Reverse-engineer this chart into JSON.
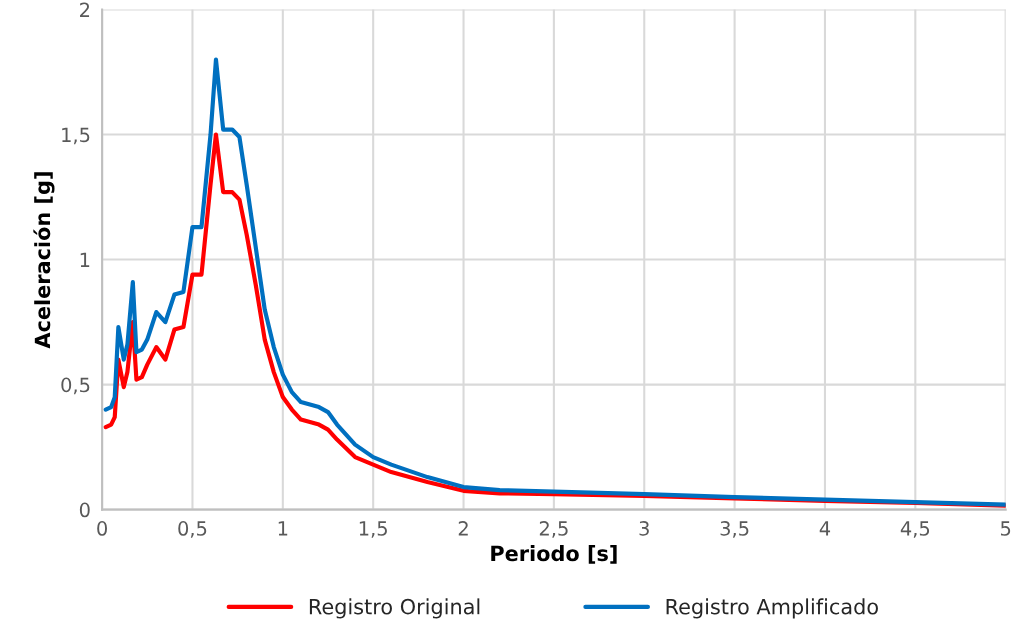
{
  "chart_data": {
    "type": "line",
    "xlabel": "Periodo [s]",
    "ylabel": "Aceleración [g]",
    "xlim": [
      0,
      5
    ],
    "ylim": [
      0,
      2
    ],
    "xticks": [
      0,
      {
        "value": 0.5,
        "label": "0,5"
      },
      1,
      {
        "value": 1.5,
        "label": "1,5"
      },
      2,
      {
        "value": 2.5,
        "label": "2,5"
      },
      3,
      {
        "value": 3.5,
        "label": "3,5"
      },
      4,
      {
        "value": 4.5,
        "label": "4,5"
      },
      5
    ],
    "yticks": [
      0,
      {
        "value": 0.5,
        "label": "0,5"
      },
      1,
      {
        "value": 1.5,
        "label": "1,5"
      },
      2
    ],
    "grid": true,
    "legend": "bottom",
    "marker": "none",
    "line_style": "solid",
    "x": [
      0.02,
      0.05,
      0.07,
      0.09,
      0.12,
      0.14,
      0.17,
      0.19,
      0.22,
      0.25,
      0.3,
      0.35,
      0.4,
      0.45,
      0.5,
      0.55,
      0.6,
      0.63,
      0.67,
      0.72,
      0.76,
      0.8,
      0.85,
      0.9,
      0.95,
      1.0,
      1.05,
      1.1,
      1.2,
      1.25,
      1.3,
      1.4,
      1.5,
      1.6,
      1.8,
      2.0,
      2.2,
      2.5,
      3.0,
      3.5,
      4.0,
      4.5,
      5.0
    ],
    "series": [
      {
        "name": "Registro Original",
        "color": "#ff0000",
        "values": [
          0.33,
          0.34,
          0.37,
          0.6,
          0.49,
          0.55,
          0.75,
          0.52,
          0.53,
          0.58,
          0.65,
          0.6,
          0.72,
          0.73,
          0.94,
          0.94,
          1.3,
          1.5,
          1.27,
          1.27,
          1.24,
          1.1,
          0.9,
          0.68,
          0.55,
          0.45,
          0.4,
          0.36,
          0.34,
          0.32,
          0.28,
          0.21,
          0.18,
          0.15,
          0.11,
          0.075,
          0.065,
          0.062,
          0.055,
          0.045,
          0.035,
          0.027,
          0.016
        ]
      },
      {
        "name": "Registro Amplificado",
        "color": "#0070c0",
        "values": [
          0.4,
          0.41,
          0.45,
          0.73,
          0.6,
          0.66,
          0.91,
          0.63,
          0.64,
          0.68,
          0.79,
          0.75,
          0.86,
          0.87,
          1.13,
          1.13,
          1.5,
          1.8,
          1.52,
          1.52,
          1.49,
          1.3,
          1.05,
          0.8,
          0.65,
          0.54,
          0.47,
          0.43,
          0.41,
          0.39,
          0.34,
          0.26,
          0.21,
          0.18,
          0.13,
          0.09,
          0.078,
          0.072,
          0.062,
          0.05,
          0.04,
          0.03,
          0.02
        ]
      }
    ]
  }
}
